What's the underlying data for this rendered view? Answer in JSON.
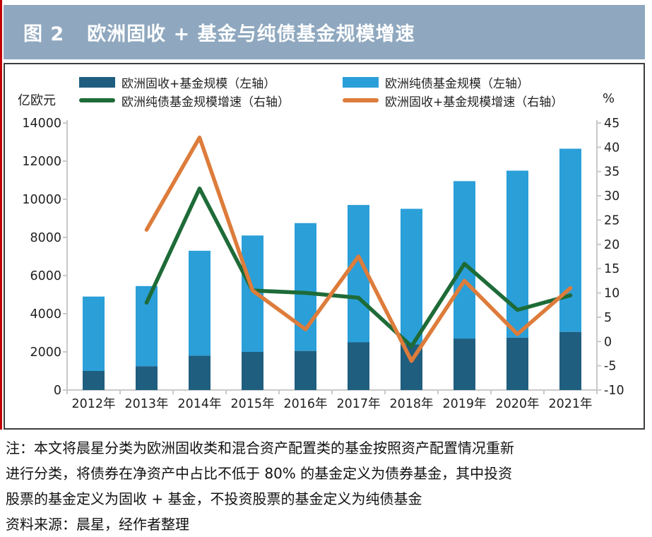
{
  "page": {
    "figure_label": "图 2",
    "title": "欧洲固收 + 基金与纯债基金规模增速",
    "notes": [
      "注：本文将晨星分类为欧洲固收类和混合资产配置类的基金按照资产配置情况重新",
      "进行分类，将债券在净资产中占比不低于 80% 的基金定义为债券基金，其中投资",
      "股票的基金定义为固收 + 基金，不投资股票的基金定义为纯债基金",
      "资料来源：晨星，经作者整理"
    ]
  },
  "colors": {
    "accent_red": "#C00000",
    "title_bar_bg": "#8FA8BF",
    "title_text": "#FFFFFF",
    "panel_border": "#3D3D3D",
    "bar_dark_blue": "#1F5E7F",
    "bar_light_blue": "#2B9FD8",
    "line_green": "#1E6B38",
    "line_orange": "#DD7C3B",
    "axis_gray": "#C9C9C9",
    "text_dark": "#1F1F1F"
  },
  "chart_data": {
    "type": "combo (stacked bars + lines, dual axis)",
    "stacked": true,
    "grid": false,
    "legend_position": "top",
    "categories": [
      "2012年",
      "2013年",
      "2014年",
      "2015年",
      "2016年",
      "2017年",
      "2018年",
      "2019年",
      "2020年",
      "2021年"
    ],
    "left_axis": {
      "unit": "亿欧元",
      "min": 0,
      "max": 14000,
      "step": 2000
    },
    "right_axis": {
      "unit": "%",
      "min": -10,
      "max": 45,
      "step": 5
    },
    "bar_series": [
      {
        "name": "欧洲固收+基金规模（左轴）",
        "axis": "left",
        "color_key": "bar_dark_blue",
        "values": [
          1000,
          1250,
          1800,
          2000,
          2050,
          2500,
          2400,
          2700,
          2750,
          3050
        ]
      },
      {
        "name": "欧洲纯债基金规模（左轴）",
        "axis": "left",
        "color_key": "bar_light_blue",
        "values": [
          3900,
          4200,
          5500,
          6100,
          6700,
          7200,
          7100,
          8250,
          8750,
          9600
        ]
      }
    ],
    "line_series": [
      {
        "name": "欧洲纯债基金规模增速（右轴）",
        "axis": "right",
        "color_key": "line_green",
        "values": [
          null,
          8,
          31.5,
          10.5,
          10,
          9,
          -1,
          16,
          6.5,
          9.5
        ]
      },
      {
        "name": "欧洲固收+基金规模增速（右轴）",
        "axis": "right",
        "color_key": "line_orange",
        "values": [
          null,
          23,
          42,
          10.5,
          2.5,
          17.5,
          -4,
          12.5,
          1.5,
          11
        ]
      }
    ]
  }
}
